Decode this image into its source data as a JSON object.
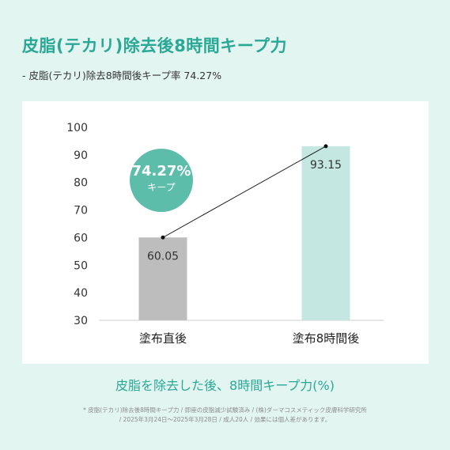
{
  "header": {
    "title": "皮脂(テカリ)除去後8時間キープ力",
    "subtitle": "- 皮脂(テカリ)除去8時間後キープ率 74.27%"
  },
  "badge": {
    "percent": "74.27%",
    "label": "キープ"
  },
  "colors": {
    "accent": "#2aa896",
    "badge": "#5dbdab",
    "bar_before": "#bdbdbd",
    "bar_after": "#c4e7e1",
    "background": "#e3f5f0"
  },
  "chart_data": {
    "type": "bar",
    "categories": [
      "塗布直後",
      "塗布8時間後"
    ],
    "values": [
      60.05,
      93.15
    ],
    "value_labels": [
      "60.05",
      "93.15"
    ],
    "ylim": [
      30,
      100
    ],
    "yticks": [
      "30",
      "40",
      "50",
      "60",
      "70",
      "80",
      "90",
      "100"
    ],
    "grid": false,
    "title": "皮脂を除去した後、8時間キープ力(%)",
    "xlabel": "",
    "ylabel": ""
  },
  "footnote": {
    "line1": "* 皮脂(テカリ)除去後8時間キープ力 / 即座の皮脂減少試験済み / (株)ダーマコスメティック皮膚科学研究所",
    "line2": "/ 2025年3月24日～2025年3月28日 / 成人20人 / 効果には個人差があります。"
  }
}
